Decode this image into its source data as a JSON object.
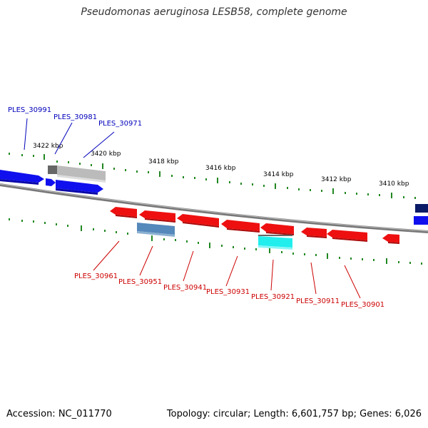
{
  "header": {
    "title": "Pseudomonas aeruginosa LESB58, complete genome"
  },
  "footer": {
    "accession": "Accession: NC_011770",
    "summary": "Topology: circular; Length: 6,601,757 bp; Genes: 6,026"
  },
  "scale": {
    "ticks": [
      "3422 kbp",
      "3420 kbp",
      "3418 kbp",
      "3416 kbp",
      "3414 kbp",
      "3412 kbp",
      "3410 kbp"
    ]
  },
  "genes": {
    "top": [
      "PLES_30991",
      "PLES_30981",
      "PLES_30971"
    ],
    "bottom": [
      "PLES_30961",
      "PLES_30951",
      "PLES_30941",
      "PLES_30931",
      "PLES_30921",
      "PLES_30911",
      "PLES_30901"
    ]
  },
  "colors": {
    "forward_gene": "#1010ee",
    "reverse_gene": "#ee1010",
    "highlight_cyan": "#22eeee",
    "highlight_steel": "#5588bb",
    "pseudo_gray": "#bbbbbb",
    "top_label": "#0000bb",
    "bottom_label": "#cc0000",
    "tick": "#228822",
    "backbone": "#777777"
  }
}
